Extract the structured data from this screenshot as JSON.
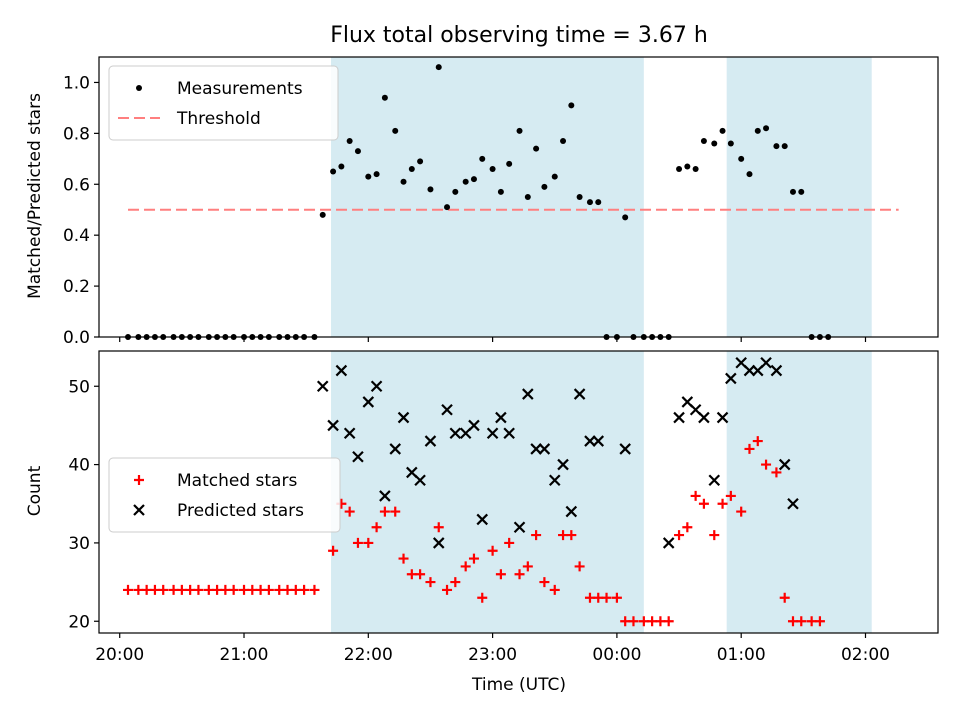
{
  "figure": {
    "title": "Flux total observing time = 3.67 h",
    "xlabel": "Time (UTC)",
    "x_ticks": [
      "20:00",
      "21:00",
      "22:00",
      "23:00",
      "00:00",
      "01:00",
      "02:00"
    ]
  },
  "chart_data": [
    {
      "type": "scatter",
      "name": "ratio",
      "ylabel": "Matched/Predicted stars",
      "ylim": [
        0,
        1.1
      ],
      "y_ticks": [
        0.0,
        0.2,
        0.4,
        0.6,
        0.8,
        1.0
      ],
      "xlim": [
        "19:50",
        "02:35"
      ],
      "legend": [
        "Measurements",
        "Threshold"
      ],
      "legend_position": "top-left",
      "shaded_intervals": [
        [
          "21:42",
          "00:13"
        ],
        [
          "00:53",
          "02:03"
        ]
      ],
      "threshold": {
        "name": "Threshold",
        "y": 0.5,
        "x_start": "20:04",
        "x_end": "02:16"
      },
      "series": [
        {
          "name": "Measurements",
          "points": [
            [
              "20:04",
              0.0
            ],
            [
              "20:09",
              0.0
            ],
            [
              "20:13",
              0.0
            ],
            [
              "20:17",
              0.0
            ],
            [
              "20:21",
              0.0
            ],
            [
              "20:26",
              0.0
            ],
            [
              "20:30",
              0.0
            ],
            [
              "20:34",
              0.0
            ],
            [
              "20:38",
              0.0
            ],
            [
              "20:43",
              0.0
            ],
            [
              "20:47",
              0.0
            ],
            [
              "20:51",
              0.0
            ],
            [
              "20:55",
              0.0
            ],
            [
              "21:00",
              0.0
            ],
            [
              "21:04",
              0.0
            ],
            [
              "21:08",
              0.0
            ],
            [
              "21:12",
              0.0
            ],
            [
              "21:17",
              0.0
            ],
            [
              "21:21",
              0.0
            ],
            [
              "21:25",
              0.0
            ],
            [
              "21:29",
              0.0
            ],
            [
              "21:34",
              0.0
            ],
            [
              "21:38",
              0.48
            ],
            [
              "21:43",
              0.65
            ],
            [
              "21:47",
              0.67
            ],
            [
              "21:51",
              0.77
            ],
            [
              "21:55",
              0.73
            ],
            [
              "22:00",
              0.63
            ],
            [
              "22:04",
              0.64
            ],
            [
              "22:08",
              0.94
            ],
            [
              "22:13",
              0.81
            ],
            [
              "22:17",
              0.61
            ],
            [
              "22:21",
              0.66
            ],
            [
              "22:25",
              0.69
            ],
            [
              "22:30",
              0.58
            ],
            [
              "22:34",
              1.06
            ],
            [
              "22:38",
              0.51
            ],
            [
              "22:42",
              0.57
            ],
            [
              "22:47",
              0.61
            ],
            [
              "22:51",
              0.62
            ],
            [
              "22:55",
              0.7
            ],
            [
              "23:00",
              0.66
            ],
            [
              "23:04",
              0.57
            ],
            [
              "23:08",
              0.68
            ],
            [
              "23:13",
              0.81
            ],
            [
              "23:17",
              0.55
            ],
            [
              "23:21",
              0.74
            ],
            [
              "23:25",
              0.59
            ],
            [
              "23:30",
              0.63
            ],
            [
              "23:34",
              0.77
            ],
            [
              "23:38",
              0.91
            ],
            [
              "23:42",
              0.55
            ],
            [
              "23:47",
              0.53
            ],
            [
              "23:51",
              0.53
            ],
            [
              "23:55",
              0.0
            ],
            [
              "00:00",
              0.0
            ],
            [
              "00:04",
              0.47
            ],
            [
              "00:08",
              0.0
            ],
            [
              "00:13",
              0.0
            ],
            [
              "00:17",
              0.0
            ],
            [
              "00:21",
              0.0
            ],
            [
              "00:25",
              0.0
            ],
            [
              "00:30",
              0.66
            ],
            [
              "00:34",
              0.67
            ],
            [
              "00:38",
              0.66
            ],
            [
              "00:42",
              0.77
            ],
            [
              "00:47",
              0.76
            ],
            [
              "00:51",
              0.81
            ],
            [
              "00:55",
              0.76
            ],
            [
              "01:00",
              0.7
            ],
            [
              "01:04",
              0.64
            ],
            [
              "01:08",
              0.81
            ],
            [
              "01:12",
              0.82
            ],
            [
              "01:17",
              0.75
            ],
            [
              "01:21",
              0.75
            ],
            [
              "01:25",
              0.57
            ],
            [
              "01:29",
              0.57
            ],
            [
              "01:34",
              0.0
            ],
            [
              "01:38",
              0.0
            ],
            [
              "01:42",
              0.0
            ]
          ]
        }
      ]
    },
    {
      "type": "scatter",
      "name": "counts",
      "ylabel": "Count",
      "ylim": [
        18.5,
        54.5
      ],
      "y_ticks": [
        20,
        30,
        40,
        50
      ],
      "xlim": [
        "19:50",
        "02:35"
      ],
      "legend": [
        "Matched stars",
        "Predicted stars"
      ],
      "legend_position": "center-left",
      "shaded_intervals": [
        [
          "21:42",
          "00:13"
        ],
        [
          "00:53",
          "02:03"
        ]
      ],
      "series": [
        {
          "name": "Matched stars",
          "points": [
            [
              "20:04",
              24
            ],
            [
              "20:09",
              24
            ],
            [
              "20:13",
              24
            ],
            [
              "20:17",
              24
            ],
            [
              "20:21",
              24
            ],
            [
              "20:26",
              24
            ],
            [
              "20:30",
              24
            ],
            [
              "20:34",
              24
            ],
            [
              "20:38",
              24
            ],
            [
              "20:43",
              24
            ],
            [
              "20:47",
              24
            ],
            [
              "20:51",
              24
            ],
            [
              "20:55",
              24
            ],
            [
              "21:00",
              24
            ],
            [
              "21:04",
              24
            ],
            [
              "21:08",
              24
            ],
            [
              "21:12",
              24
            ],
            [
              "21:17",
              24
            ],
            [
              "21:21",
              24
            ],
            [
              "21:25",
              24
            ],
            [
              "21:29",
              24
            ],
            [
              "21:34",
              24
            ],
            [
              "21:43",
              29
            ],
            [
              "21:47",
              35
            ],
            [
              "21:51",
              34
            ],
            [
              "21:55",
              30
            ],
            [
              "22:00",
              30
            ],
            [
              "22:04",
              32
            ],
            [
              "22:08",
              34
            ],
            [
              "22:13",
              34
            ],
            [
              "22:17",
              28
            ],
            [
              "22:21",
              26
            ],
            [
              "22:25",
              26
            ],
            [
              "22:30",
              25
            ],
            [
              "22:34",
              32
            ],
            [
              "22:38",
              24
            ],
            [
              "22:42",
              25
            ],
            [
              "22:47",
              27
            ],
            [
              "22:51",
              28
            ],
            [
              "22:55",
              23
            ],
            [
              "23:00",
              29
            ],
            [
              "23:04",
              26
            ],
            [
              "23:08",
              30
            ],
            [
              "23:13",
              26
            ],
            [
              "23:17",
              27
            ],
            [
              "23:21",
              31
            ],
            [
              "23:25",
              25
            ],
            [
              "23:30",
              24
            ],
            [
              "23:34",
              31
            ],
            [
              "23:38",
              31
            ],
            [
              "23:42",
              27
            ],
            [
              "23:47",
              23
            ],
            [
              "23:51",
              23
            ],
            [
              "23:55",
              23
            ],
            [
              "00:00",
              23
            ],
            [
              "00:04",
              20
            ],
            [
              "00:08",
              20
            ],
            [
              "00:13",
              20
            ],
            [
              "00:17",
              20
            ],
            [
              "00:21",
              20
            ],
            [
              "00:25",
              20
            ],
            [
              "00:30",
              31
            ],
            [
              "00:34",
              32
            ],
            [
              "00:38",
              36
            ],
            [
              "00:42",
              35
            ],
            [
              "00:47",
              31
            ],
            [
              "00:51",
              35
            ],
            [
              "00:55",
              36
            ],
            [
              "01:00",
              34
            ],
            [
              "01:04",
              42
            ],
            [
              "01:08",
              43
            ],
            [
              "01:12",
              40
            ],
            [
              "01:17",
              39
            ],
            [
              "01:21",
              23
            ],
            [
              "01:25",
              20
            ],
            [
              "01:29",
              20
            ],
            [
              "01:34",
              20
            ],
            [
              "01:38",
              20
            ]
          ]
        },
        {
          "name": "Predicted stars",
          "points": [
            [
              "21:38",
              50
            ],
            [
              "21:43",
              45
            ],
            [
              "21:47",
              52
            ],
            [
              "21:51",
              44
            ],
            [
              "21:55",
              41
            ],
            [
              "22:00",
              48
            ],
            [
              "22:04",
              50
            ],
            [
              "22:08",
              36
            ],
            [
              "22:13",
              42
            ],
            [
              "22:17",
              46
            ],
            [
              "22:21",
              39
            ],
            [
              "22:25",
              38
            ],
            [
              "22:30",
              43
            ],
            [
              "22:34",
              30
            ],
            [
              "22:38",
              47
            ],
            [
              "22:42",
              44
            ],
            [
              "22:47",
              44
            ],
            [
              "22:51",
              45
            ],
            [
              "22:55",
              33
            ],
            [
              "23:00",
              44
            ],
            [
              "23:04",
              46
            ],
            [
              "23:08",
              44
            ],
            [
              "23:13",
              32
            ],
            [
              "23:17",
              49
            ],
            [
              "23:21",
              42
            ],
            [
              "23:25",
              42
            ],
            [
              "23:30",
              38
            ],
            [
              "23:34",
              40
            ],
            [
              "23:38",
              34
            ],
            [
              "23:42",
              49
            ],
            [
              "23:47",
              43
            ],
            [
              "23:51",
              43
            ],
            [
              "00:04",
              42
            ],
            [
              "00:25",
              30
            ],
            [
              "00:30",
              46
            ],
            [
              "00:34",
              48
            ],
            [
              "00:38",
              47
            ],
            [
              "00:42",
              46
            ],
            [
              "00:47",
              38
            ],
            [
              "00:51",
              46
            ],
            [
              "00:55",
              51
            ],
            [
              "01:00",
              53
            ],
            [
              "01:04",
              52
            ],
            [
              "01:08",
              52
            ],
            [
              "01:12",
              53
            ],
            [
              "01:17",
              52
            ],
            [
              "01:21",
              40
            ],
            [
              "01:25",
              35
            ]
          ]
        }
      ]
    }
  ],
  "colors": {
    "shade": "#add8e6",
    "threshold": "#ff7f7f",
    "matched": "#ff0000",
    "predicted": "#000000",
    "measurement": "#000000"
  }
}
